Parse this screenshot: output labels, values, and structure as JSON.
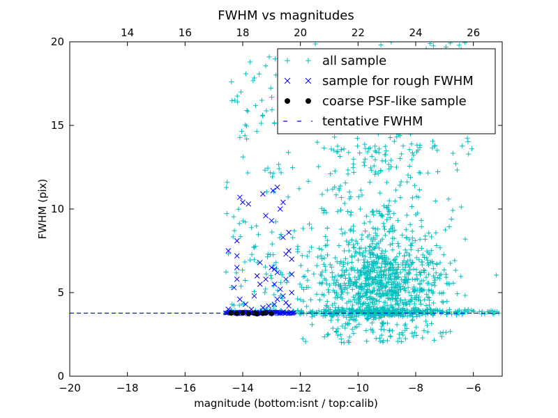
{
  "chart_data": {
    "type": "scatter",
    "title": "FWHM vs magnitudes",
    "xlabel": "magnitude (bottom:isnt / top:calib)",
    "ylabel": "FWHM (pix)",
    "xlim": [
      -20,
      -5
    ],
    "ylim": [
      0,
      20
    ],
    "x_ticks": [
      -20,
      -18,
      -16,
      -14,
      -12,
      -10,
      -8,
      -6
    ],
    "x_tick_labels": [
      "−20",
      "−18",
      "−16",
      "−14",
      "−12",
      "−10",
      "−8",
      "−6"
    ],
    "y_ticks": [
      0,
      5,
      10,
      15,
      20
    ],
    "y_tick_labels": [
      "0",
      "5",
      "10",
      "15",
      "20"
    ],
    "top_axis": {
      "offset_from_bottom": 32,
      "ticks": [
        14,
        16,
        18,
        20,
        22,
        24,
        26
      ],
      "tick_labels": [
        "14",
        "16",
        "18",
        "20",
        "22",
        "24",
        "26"
      ]
    },
    "legend_position": "top-right",
    "grid": false,
    "series": [
      {
        "name": "all sample",
        "marker": "plus",
        "color": "#00bfbf",
        "description": "scattered points; a column near x=-14.5..-12.3 spanning FWHM 3.7-19, and a dense cloud x=-12..-5 centred near x=-9.3, FWHM 4-8"
      },
      {
        "name": "sample for rough FWHM",
        "marker": "x",
        "color": "#0000ff",
        "points": [
          [
            -14.5,
            7.5
          ],
          [
            -14.5,
            4.0
          ],
          [
            -14.2,
            8.1
          ],
          [
            -14.1,
            10.7
          ],
          [
            -14.0,
            10.4
          ],
          [
            -13.8,
            10.3
          ],
          [
            -14.2,
            7.2
          ],
          [
            -14.2,
            6.5
          ],
          [
            -14.2,
            5.8
          ],
          [
            -14.3,
            5.3
          ],
          [
            -14.1,
            4.6
          ],
          [
            -13.9,
            4.3
          ],
          [
            -13.6,
            4.8
          ],
          [
            -13.5,
            6.0
          ],
          [
            -13.4,
            6.8
          ],
          [
            -13.4,
            5.5
          ],
          [
            -13.3,
            10.9
          ],
          [
            -13.2,
            9.6
          ],
          [
            -13.0,
            9.3
          ],
          [
            -12.95,
            11.1
          ],
          [
            -12.9,
            6.4
          ],
          [
            -12.8,
            6.2
          ],
          [
            -12.8,
            11.3
          ],
          [
            -12.7,
            10.0
          ],
          [
            -12.6,
            10.4
          ],
          [
            -12.7,
            5.2
          ],
          [
            -12.8,
            4.6
          ],
          [
            -13.1,
            4.2
          ],
          [
            -12.9,
            5.5
          ],
          [
            -12.6,
            4.8
          ],
          [
            -12.5,
            5.8
          ],
          [
            -12.5,
            7.3
          ],
          [
            -12.4,
            7.5
          ],
          [
            -12.4,
            8.6
          ],
          [
            -12.6,
            8.3
          ],
          [
            -12.3,
            7.0
          ],
          [
            -12.3,
            6.1
          ],
          [
            -12.5,
            4.4
          ],
          [
            -12.3,
            5.0
          ],
          [
            -13.7,
            4.0
          ],
          [
            -13.3,
            4.1
          ],
          [
            -12.9,
            4.3
          ],
          [
            -12.4,
            4.2
          ],
          [
            -13.0,
            6.5
          ],
          [
            -13.2,
            5.8
          ]
        ],
        "band": {
          "x_from": -14.6,
          "x_to": -12.2,
          "y": 3.8
        }
      },
      {
        "name": "coarse PSF-like sample",
        "marker": "circle",
        "color": "#000000",
        "points": [
          [
            -14.4,
            3.78
          ],
          [
            -14.2,
            3.75
          ],
          [
            -14.0,
            3.78
          ],
          [
            -13.8,
            3.74
          ],
          [
            -13.6,
            3.77
          ],
          [
            -13.5,
            3.73
          ],
          [
            -13.3,
            3.76
          ],
          [
            -13.2,
            3.79
          ],
          [
            -13.0,
            3.75
          ]
        ]
      },
      {
        "name": "tentative FWHM",
        "marker": "dashed-line",
        "color": "#0000ff",
        "y": 3.77
      }
    ]
  }
}
